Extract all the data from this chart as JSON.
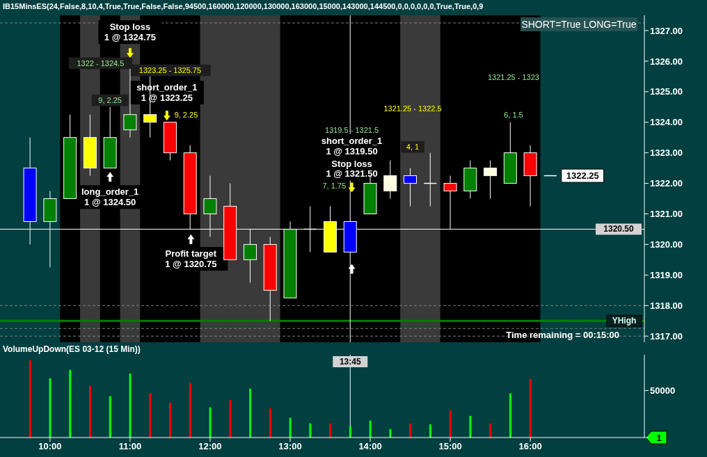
{
  "chart_data": [
    {
      "type": "candlestick",
      "title": "IB15MinsES(24,False,8,10,4,True,True,False,False,94500,160000,120000,130000,163000,15000,143000,144500,0,0,0,0,0,0,True,True,0,9",
      "x": [
        9.75,
        10,
        10.25,
        10.5,
        10.75,
        11,
        11.25,
        11.5,
        11.75,
        12,
        12.25,
        12.5,
        12.75,
        13,
        13.25,
        13.5,
        13.75,
        14,
        14.25,
        14.5,
        14.75,
        15,
        15.25,
        15.5,
        15.75,
        16,
        16.25
      ],
      "ohlc": [
        [
          1322.5,
          1323.5,
          1320,
          1320.75
        ],
        [
          1320.75,
          1321.75,
          1319.25,
          1321.5
        ],
        [
          1321.5,
          1324.25,
          1321.5,
          1323.5
        ],
        [
          1323.5,
          1324.25,
          1322.25,
          1322.5
        ],
        [
          1322.5,
          1324.5,
          1322.5,
          1323.5
        ],
        [
          1323.75,
          1325.75,
          1323.5,
          1324.25
        ],
        [
          1324.25,
          1325.5,
          1323.5,
          1324
        ],
        [
          1324,
          1324,
          1322.75,
          1323
        ],
        [
          1323,
          1323.25,
          1320.5,
          1321
        ],
        [
          1321,
          1322.25,
          1320.25,
          1321.5
        ],
        [
          1321.25,
          1322,
          1319.5,
          1319.5
        ],
        [
          1319.5,
          1320.5,
          1318.75,
          1320
        ],
        [
          1320,
          1320.25,
          1317.5,
          1318.5
        ],
        [
          1318.25,
          1320.75,
          1318.25,
          1320.5
        ],
        [
          1320.5,
          1321.25,
          1319.75,
          1320.5
        ],
        [
          1319.75,
          1321.25,
          1319.75,
          1320.75
        ],
        [
          1320.75,
          1320.75,
          1319.75,
          1319.75
        ],
        [
          1321,
          1322.25,
          1321,
          1322
        ],
        [
          1322.25,
          1322.75,
          1321.5,
          1321.75
        ],
        [
          1322,
          1322.5,
          1321.25,
          1322.25
        ],
        [
          1322,
          1323,
          1321.25,
          1322
        ],
        [
          1322,
          1322.25,
          1320.5,
          1321.75
        ],
        [
          1321.75,
          1322.75,
          1321.5,
          1322.5
        ],
        [
          1322.25,
          1322.75,
          1321.5,
          1322.5
        ],
        [
          1322,
          1324,
          1322,
          1323
        ],
        [
          1323,
          1323.25,
          1321.25,
          1322.25
        ],
        [
          1322.25,
          1322.25,
          1322.25,
          1322.25
        ]
      ],
      "colors": [
        "#0000ff",
        "#008000",
        "#008000",
        "#ffff00",
        "#008000",
        "#008000",
        "#ffff00",
        "#ff0000",
        "#ff0000",
        "#008000",
        "#ff0000",
        "#008000",
        "#ff0000",
        "#008000",
        "#ffffff",
        "#ffff00",
        "#0000ff",
        "#008000",
        "#fffde0",
        "#0000ff",
        "#ffffff",
        "#ff0000",
        "#008000",
        "#fffde0",
        "#008000",
        "#ff0000",
        "#ffffff"
      ],
      "xlim": [
        9.375,
        17.425
      ],
      "ylim": [
        1316.8,
        1327.5
      ],
      "yticks": [
        {
          "value": 1317,
          "label": "1317.00"
        },
        {
          "value": 1318,
          "label": "1318.00"
        },
        {
          "value": 1319,
          "label": "1319.00"
        },
        {
          "value": 1320,
          "label": "1320.00"
        },
        {
          "value": 1321,
          "label": "1321.00"
        },
        {
          "value": 1322,
          "label": "1322.00"
        },
        {
          "value": 1323,
          "label": "1323.00"
        },
        {
          "value": 1324,
          "label": "1324.00"
        },
        {
          "value": 1325,
          "label": "1325.00"
        },
        {
          "value": 1326,
          "label": "1326.00"
        },
        {
          "value": 1327,
          "label": "1327.00"
        }
      ],
      "tick_labels": "y",
      "bands": [
        {
          "axis": "x",
          "from": 10.125,
          "to": 16.125,
          "color": "#000000"
        },
        {
          "axis": "x",
          "from": 10.375,
          "to": 10.625,
          "color": "#3a3a3a"
        },
        {
          "axis": "x",
          "from": 10.875,
          "to": 11.125,
          "color": "#3a3a3a"
        },
        {
          "axis": "x",
          "from": 11.875,
          "to": 12.875,
          "color": "#3a3a3a"
        },
        {
          "axis": "x",
          "from": 14.375,
          "to": 14.875,
          "color": "#3a3a3a"
        }
      ],
      "ref_lines": [
        {
          "axis": "y",
          "value": 1327.25,
          "color": "#808080",
          "line_style": "dashed"
        },
        {
          "axis": "y",
          "value": 1318,
          "color": "#808080",
          "line_style": "dashed"
        },
        {
          "axis": "y",
          "value": 1317.25,
          "color": "#808080",
          "line_style": "dashed"
        },
        {
          "axis": "y",
          "value": 1317,
          "color": "#808080",
          "line_style": "dashed"
        },
        {
          "axis": "y",
          "value": 1317.5,
          "color": "#008000",
          "line_style": "solid",
          "label": "YHigh"
        },
        {
          "axis": "y",
          "value": 1320.5,
          "color": "#ffffff",
          "line_style": "solid",
          "label": "1320.50"
        },
        {
          "axis": "x",
          "value": 13.75,
          "color": "#ffffff",
          "line_style": "solid"
        }
      ],
      "annotations": [
        "Stop loss\n1 @ 1324.75",
        "long_order_1\n1 @ 1324.50",
        "short_order_1\n1 @ 1323.25",
        "Profit target\n1 @ 1320.75",
        "short_order_1\n1 @ 1319.50",
        "Stop loss\n1 @ 1321.50",
        "1322 - 1324.5",
        "1323.25 - 1325.75",
        "9, 2.25",
        "9, 2.25",
        "1319.5 - 1321.5",
        "7, 1.75",
        "1321.25 - 1322.5",
        "4, 1",
        "1321.25 - 1323",
        "6, 1.5",
        {
          "text": "1322.25",
          "x": 16.25,
          "y": 1322.25
        },
        "SHORT=True LONG=True",
        "Time remaining = 00:15:00"
      ]
    },
    {
      "type": "bar",
      "title": "VolumeUpDown(ES 03-12 (15 Min))",
      "x": [
        9.75,
        10,
        10.25,
        10.5,
        10.75,
        11,
        11.25,
        11.5,
        11.75,
        12,
        12.25,
        12.5,
        12.75,
        13,
        13.25,
        13.5,
        13.75,
        14,
        14.25,
        14.5,
        14.75,
        15,
        15.25,
        15.5,
        15.75,
        16
      ],
      "values": [
        82000,
        63000,
        72000,
        55000,
        44000,
        68000,
        47000,
        37000,
        58000,
        32000,
        40000,
        52000,
        31000,
        21000,
        15000,
        15000,
        12000,
        18000,
        9000,
        15000,
        14000,
        29000,
        23000,
        15000,
        47000,
        62000
      ],
      "colors": [
        "#ff0000",
        "#00ff00",
        "#00ff00",
        "#ff0000",
        "#00ff00",
        "#00ff00",
        "#ff0000",
        "#ff0000",
        "#ff0000",
        "#00ff00",
        "#ff0000",
        "#00ff00",
        "#ff0000",
        "#00ff00",
        "#00ff00",
        "#ff0000",
        "#00ff00",
        "#00ff00",
        "#00ff00",
        "#ff0000",
        "#00ff00",
        "#ff0000",
        "#00ff00",
        "#ff0000",
        "#00ff00",
        "#ff0000"
      ],
      "xlim": [
        9.375,
        17.425
      ],
      "ylim": [
        0,
        88000
      ],
      "xticks": [
        {
          "value": 10,
          "label": "10:00"
        },
        {
          "value": 11,
          "label": "11:00"
        },
        {
          "value": 12,
          "label": "12:00"
        },
        {
          "value": 13,
          "label": "13:00"
        },
        {
          "value": 14,
          "label": "14:00"
        },
        {
          "value": 15,
          "label": "15:00"
        },
        {
          "value": 16,
          "label": "16:00"
        }
      ],
      "yticks": [
        {
          "value": 0,
          "label": null
        },
        50000
      ],
      "ref_lines": [
        {
          "axis": "x",
          "value": 13.75,
          "color": "#ffffff",
          "line_style": "solid"
        }
      ],
      "annotations": [
        "1",
        "13:45"
      ]
    }
  ]
}
